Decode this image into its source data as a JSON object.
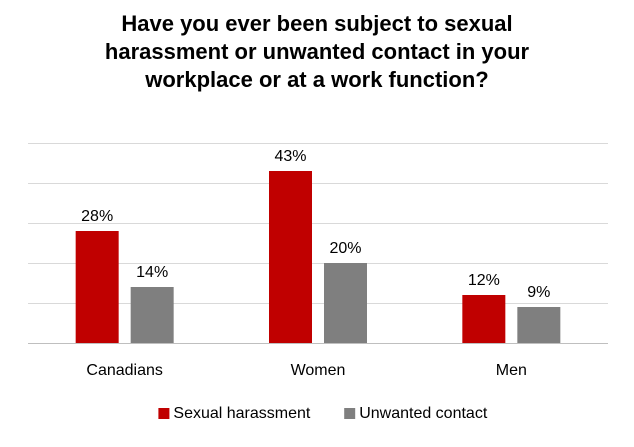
{
  "chart_data": {
    "type": "bar",
    "title_lines": [
      "Have you ever been subject to sexual",
      "harassment or unwanted contact in your",
      "workplace or at a work function?"
    ],
    "categories": [
      "Canadians",
      "Women",
      "Men"
    ],
    "series": [
      {
        "name": "Sexual harassment",
        "color": "#c00000",
        "values": [
          28,
          43,
          12
        ],
        "labels": [
          "28%",
          "43%",
          "12%"
        ]
      },
      {
        "name": "Unwanted contact",
        "color": "#7f7f7f",
        "values": [
          14,
          20,
          9
        ],
        "labels": [
          "14%",
          "20%",
          "9%"
        ]
      }
    ],
    "ylim": [
      0,
      50
    ],
    "y_gridlines_every": 10,
    "grid": true,
    "y_tick_labels_shown": false,
    "legend_position": "bottom"
  }
}
